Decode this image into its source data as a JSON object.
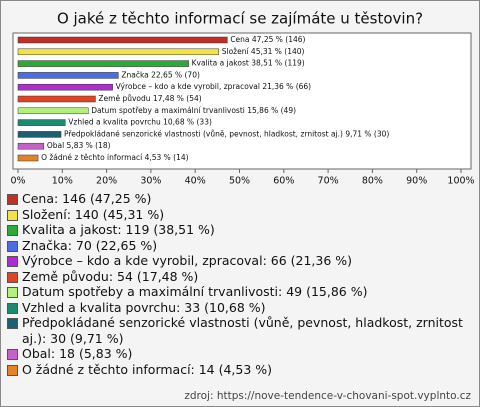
{
  "chart_data": {
    "type": "bar",
    "orientation": "horizontal",
    "title": "O jaké z těchto informací se zajímáte u těstovin?",
    "categories": [
      "Cena",
      "Složení",
      "Kvalita a jakost",
      "Značka",
      "Výrobce – kdo a kde vyrobil, zpracoval",
      "Země původu",
      "Datum spotřeby a maximální trvanlivosti",
      "Vzhled a kvalita povrchu",
      "Předpokládané senzorické vlastnosti (vůně, pevnost, hladkost, zrnitost aj.)",
      "Obal",
      "O žádné z těchto informací"
    ],
    "values": [
      47.25,
      45.31,
      38.51,
      22.65,
      21.36,
      17.48,
      15.86,
      10.68,
      9.71,
      5.83,
      4.53
    ],
    "value_labels": [
      "Cena 47,25 % (146)",
      "Složení 45,31 % (140)",
      "Kvalita a jakost 38,51 % (119)",
      "Značka 22,65 % (70)",
      "Výrobce – kdo a kde vyrobil, zpracoval 21,36 % (66)",
      "Země původu 17,48 % (54)",
      "Datum spotřeby a maximální trvanlivosti 15,86 % (49)",
      "Vzhled a kvalita povrchu 10,68 % (33)",
      "Předpokládané senzorické vlastnosti (vůně, pevnost, hladkost, zrnitost aj.) 9,71 % (30)",
      "Obal 5,83 % (18)",
      "O žádné z těchto informací 4,53 % (14)"
    ],
    "legend_labels": [
      "Cena: 146 (47,25 %)",
      "Složení: 140 (45,31 %)",
      "Kvalita a jakost: 119 (38,51 %)",
      "Značka: 70 (22,65 %)",
      "Výrobce – kdo a kde vyrobil, zpracoval: 66 (21,36 %)",
      "Země původu: 54 (17,48 %)",
      "Datum spotřeby a maximální trvanlivosti: 49 (15,86 %)",
      "Vzhled a kvalita povrchu: 33 (10,68 %)",
      "Předpokládané senzorické vlastnosti (vůně, pevnost, hladkost, zrnitost aj.): 30 (9,71 %)",
      "Obal: 18 (5,83 %)",
      "O žádné z těchto informací: 14 (4,53 %)"
    ],
    "colors": [
      "#c0302a",
      "#f2e24a",
      "#2ea838",
      "#4a6ee0",
      "#b02cd0",
      "#e04422",
      "#b4f07e",
      "#1c8a6e",
      "#1e5e72",
      "#c462c8",
      "#e2822a"
    ],
    "xlim": [
      0,
      100
    ],
    "xticks": [
      {
        "value": 0,
        "label": "0%"
      },
      {
        "value": 10,
        "label": "10%"
      },
      {
        "value": 20,
        "label": "20%"
      },
      {
        "value": 30,
        "label": "30%"
      },
      {
        "value": 40,
        "label": "40%"
      },
      {
        "value": 50,
        "label": "50%"
      },
      {
        "value": 60,
        "label": "60%"
      },
      {
        "value": 70,
        "label": "70%"
      },
      {
        "value": 80,
        "label": "80%"
      },
      {
        "value": 90,
        "label": "90%"
      },
      {
        "value": 100,
        "label": "100%"
      }
    ],
    "source": "zdroj: https://nove-tendence-v-chovani-spot.vyplnto.cz"
  }
}
